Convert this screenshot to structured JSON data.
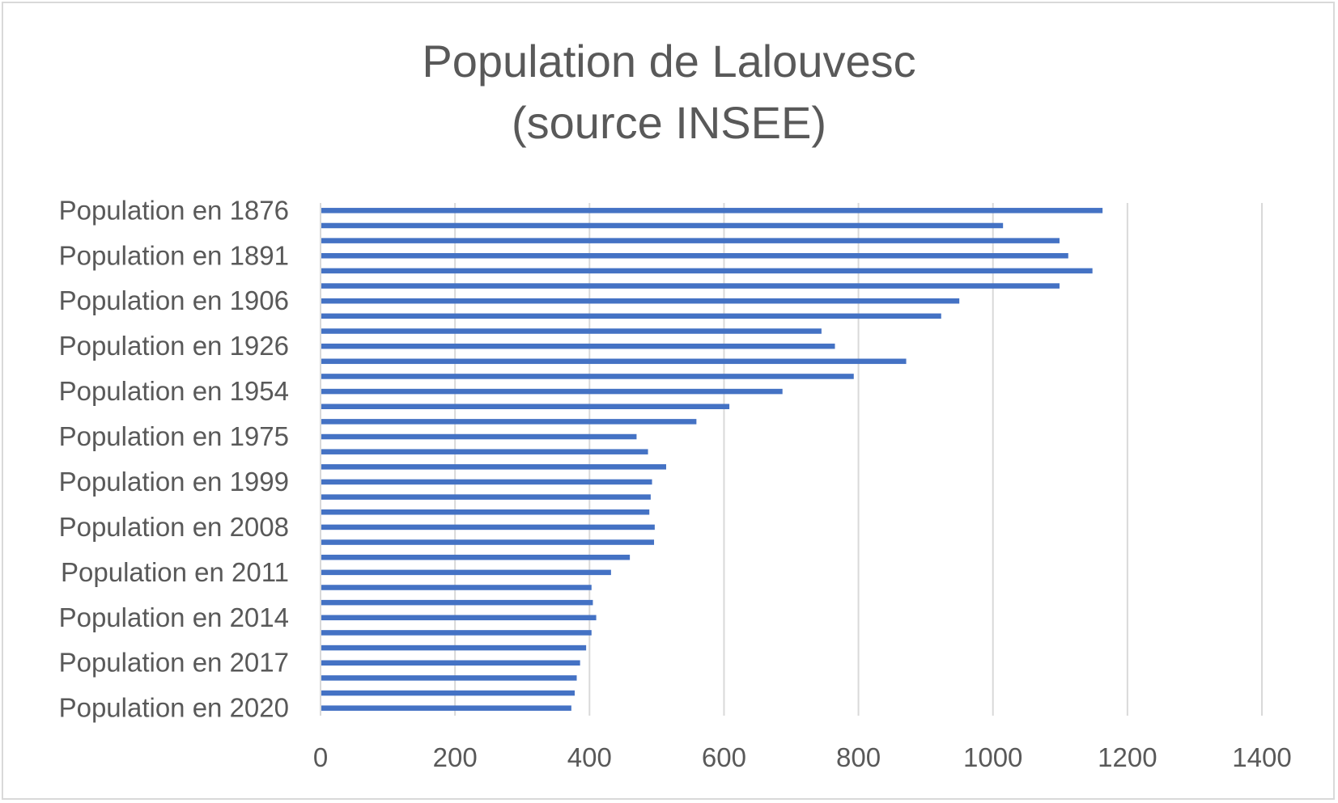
{
  "chart_data": {
    "type": "bar",
    "orientation": "horizontal",
    "title_lines": [
      "Population de Lalouvesc",
      "(source INSEE)"
    ],
    "xlabel": "",
    "ylabel": "",
    "xlim": [
      0,
      1400
    ],
    "x_ticks": [
      0,
      200,
      400,
      600,
      800,
      1000,
      1200,
      1400
    ],
    "grid": "vertical",
    "legend": "none",
    "bar_color": "#4472C4",
    "categories": [
      "Population en 1876",
      "",
      "",
      "Population en 1891",
      "",
      "",
      "Population en 1906",
      "",
      "",
      "Population en 1926",
      "",
      "",
      "Population en 1954",
      "",
      "",
      "Population en 1975",
      "",
      "",
      "Population en 1999",
      "",
      "",
      "Population en 2008",
      "",
      "",
      "Population en 2011",
      "",
      "",
      "Population en 2014",
      "",
      "",
      "Population en 2017",
      "",
      "",
      "Population en 2020"
    ],
    "values": [
      1163,
      1015,
      1099,
      1112,
      1148,
      1099,
      950,
      923,
      745,
      765,
      871,
      793,
      687,
      608,
      559,
      470,
      487,
      514,
      493,
      491,
      489,
      497,
      496,
      460,
      432,
      403,
      405,
      410,
      403,
      395,
      386,
      381,
      378,
      373
    ]
  }
}
